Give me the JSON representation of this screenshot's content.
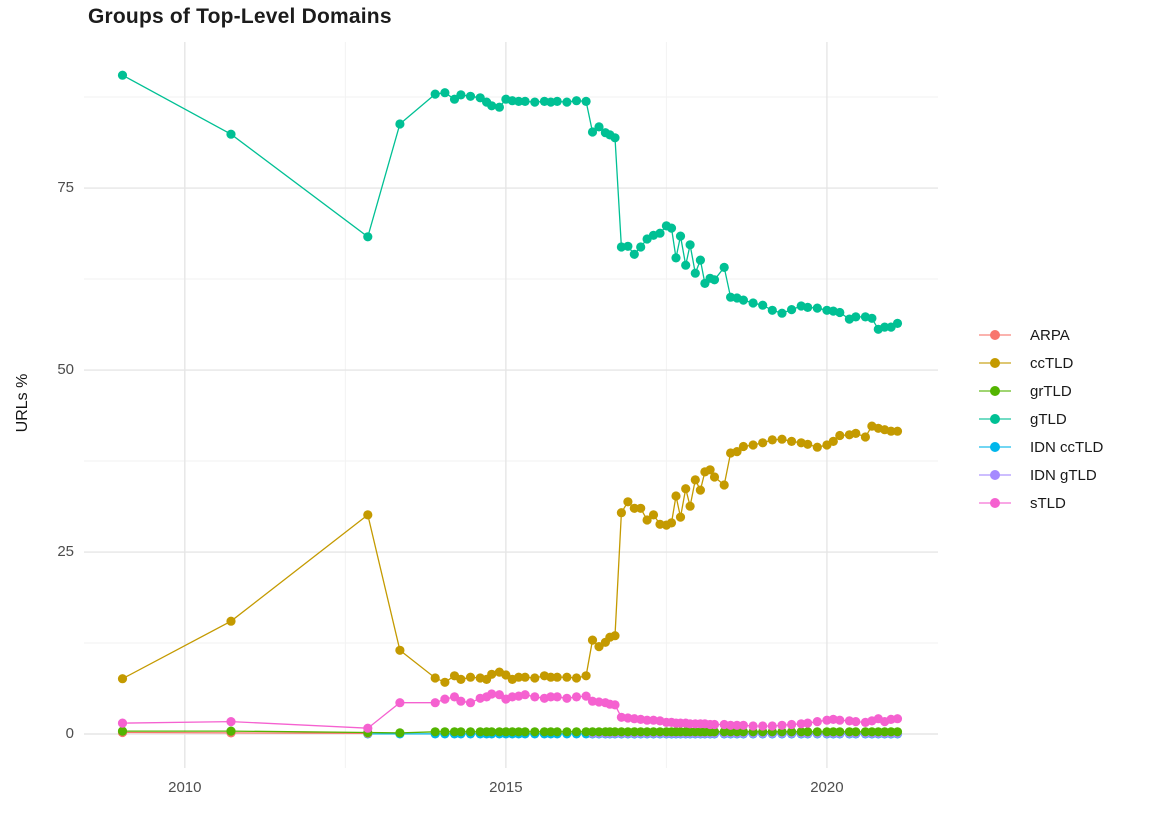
{
  "title": "Groups of Top-Level Domains",
  "axes": {
    "y_label": "URLs %",
    "x_ticks": [
      {
        "label": "2010",
        "value": 2010
      },
      {
        "label": "2015",
        "value": 2015
      },
      {
        "label": "2020",
        "value": 2020
      }
    ],
    "y_ticks": [
      {
        "label": "0",
        "value": 0
      },
      {
        "label": "25",
        "value": 25
      },
      {
        "label": "50",
        "value": 50
      },
      {
        "label": "75",
        "value": 75
      }
    ]
  },
  "chart_data": {
    "type": "line",
    "title": "Groups of Top-Level Domains",
    "xlabel": "",
    "ylabel": "URLs %",
    "xlim": [
      2008.43,
      2021.73
    ],
    "ylim": [
      -4.67,
      95.06
    ],
    "grid": true,
    "x_major": [
      2010,
      2015,
      2020
    ],
    "x_minor": [
      2012.5,
      2017.5
    ],
    "y_major": [
      0,
      25,
      50,
      75
    ],
    "y_minor": [
      12.5,
      37.5,
      62.5,
      87.5
    ],
    "legend_position": "right",
    "x_dense": [
      2013.9,
      2014.05,
      2014.2,
      2014.3,
      2014.45,
      2014.6,
      2014.7,
      2014.78,
      2014.9,
      2015.0,
      2015.1,
      2015.2,
      2015.3,
      2015.45,
      2015.6,
      2015.7,
      2015.8,
      2015.95,
      2016.1,
      2016.25,
      2016.35,
      2016.45,
      2016.55,
      2016.62,
      2016.7,
      2016.8,
      2016.9,
      2017.0,
      2017.1,
      2017.2,
      2017.3,
      2017.4,
      2017.5,
      2017.58,
      2017.65,
      2017.72,
      2017.8,
      2017.87,
      2017.95,
      2018.03,
      2018.1,
      2018.18,
      2018.25,
      2018.4,
      2018.5,
      2018.6,
      2018.7,
      2018.85,
      2019.0,
      2019.15,
      2019.3,
      2019.45,
      2019.6,
      2019.7,
      2019.85,
      2020.0,
      2020.1,
      2020.2,
      2020.35,
      2020.45,
      2020.6,
      2020.7,
      2020.8,
      2020.9,
      2021.0,
      2021.1
    ],
    "series": [
      {
        "name": "ARPA",
        "color": "#F8766D",
        "x_head": [
          2009.03,
          2010.72,
          2012.85
        ],
        "y_head": [
          0.2,
          0.15,
          0.1
        ]
      },
      {
        "name": "ccTLD",
        "color": "#C49A00",
        "dense_from": 2013.9,
        "x_head": [
          2009.03,
          2010.72,
          2012.85,
          2013.35
        ],
        "y_head": [
          7.6,
          15.5,
          30.1,
          11.5,
          7.7,
          7.1,
          8.0,
          7.5,
          7.8,
          7.7,
          7.5,
          8.2,
          8.5,
          8.1,
          7.5,
          7.8,
          7.8,
          7.7,
          8.0,
          7.8,
          7.8,
          7.8,
          7.7,
          8.0,
          12.9,
          12.0,
          12.6,
          13.3,
          13.5,
          30.4,
          31.9,
          31.0,
          31.0,
          29.4,
          30.1,
          28.8,
          28.7,
          29.0,
          32.7,
          29.8,
          33.7,
          31.3,
          34.9,
          33.5,
          36.0,
          36.3,
          35.3,
          34.2,
          38.6,
          38.8,
          39.5,
          39.7,
          40.0,
          40.4,
          40.5,
          40.2,
          40.0,
          39.8,
          39.4,
          39.7,
          40.2,
          41.0,
          41.1,
          41.3,
          40.8,
          42.3,
          42.0,
          41.8,
          41.6,
          41.6
        ]
      },
      {
        "name": "grTLD",
        "color": "#53B400",
        "dense_from": 2013.9,
        "x_head": [
          2009.03,
          2010.72,
          2012.85,
          2013.35
        ],
        "y_head": [
          0.4,
          0.4,
          0.2,
          0.15
        ],
        "y_fill": 0.3
      },
      {
        "name": "gTLD",
        "color": "#00C094",
        "dense_from": 2013.9,
        "x_head": [
          2009.03,
          2010.72,
          2012.85,
          2013.35
        ],
        "y_head": [
          90.5,
          82.4,
          68.3,
          83.8,
          87.9,
          88.1,
          87.2,
          87.8,
          87.6,
          87.4,
          86.8,
          86.3,
          86.1,
          87.2,
          87.0,
          86.9,
          86.9,
          86.8,
          86.9,
          86.8,
          86.9,
          86.8,
          87.0,
          86.9,
          82.7,
          83.4,
          82.6,
          82.3,
          81.9,
          66.9,
          67.0,
          65.9,
          66.9,
          68.0,
          68.5,
          68.8,
          69.8,
          69.5,
          65.4,
          68.4,
          64.4,
          67.2,
          63.3,
          65.1,
          61.9,
          62.6,
          62.4,
          64.1,
          60.0,
          59.9,
          59.6,
          59.2,
          58.9,
          58.2,
          57.8,
          58.3,
          58.8,
          58.6,
          58.5,
          58.2,
          58.1,
          57.9,
          57.0,
          57.3,
          57.3,
          57.1,
          55.6,
          55.9,
          55.9,
          56.4
        ]
      },
      {
        "name": "IDN ccTLD",
        "color": "#00B6EB",
        "dense_from": 2013.9,
        "x_head": [
          2012.85,
          2013.35
        ],
        "y_head": [],
        "y_fill": 0.02
      },
      {
        "name": "IDN gTLD",
        "color": "#A58AFF",
        "dense_from": 2016.35,
        "x_head": [],
        "y_head": [],
        "y_fill": 0.08
      },
      {
        "name": "sTLD",
        "color": "#F561D0",
        "dense_from": 2013.9,
        "x_head": [
          2009.03,
          2010.72,
          2012.85,
          2013.35
        ],
        "y_head": [
          1.5,
          1.7,
          0.8,
          4.3,
          4.3,
          4.8,
          5.1,
          4.5,
          4.3,
          4.9,
          5.1,
          5.5,
          5.4,
          4.8,
          5.1,
          5.2,
          5.4,
          5.1,
          4.9,
          5.1,
          5.1,
          4.9,
          5.1,
          5.2,
          4.5,
          4.4,
          4.3,
          4.1,
          4.0,
          2.3,
          2.2,
          2.1,
          2.0,
          1.9,
          1.9,
          1.8,
          1.6,
          1.6,
          1.5,
          1.5,
          1.5,
          1.4,
          1.4,
          1.4,
          1.4,
          1.3,
          1.3,
          1.3,
          1.2,
          1.2,
          1.2,
          1.1,
          1.1,
          1.1,
          1.2,
          1.3,
          1.4,
          1.5,
          1.7,
          1.9,
          2.0,
          1.9,
          1.8,
          1.7,
          1.6,
          1.8,
          2.1,
          1.7,
          2.0,
          2.1
        ]
      }
    ]
  },
  "style": {
    "grid_major_color": "#e6e6e6",
    "grid_minor_color": "#f2f2f2",
    "point_radius": 4.6,
    "line_width": 1.3
  }
}
